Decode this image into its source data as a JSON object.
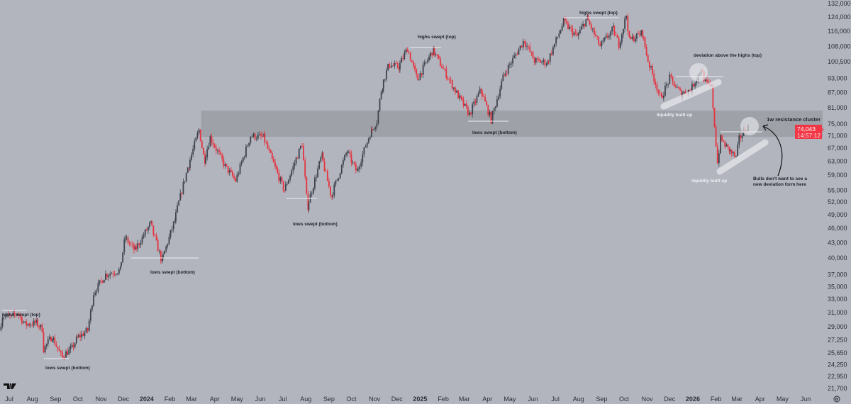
{
  "chart_data": {
    "type": "candlestick",
    "y_scale": "log",
    "ylim": [
      21700,
      132000
    ],
    "xlim": [
      "2023-06-20",
      "2026-06-15"
    ],
    "grid": false,
    "y_ticks": [
      "132,000",
      "124,000",
      "116,000",
      "108,000",
      "100,500",
      "93,000",
      "87,000",
      "81,000",
      "75,000",
      "71,000",
      "67,000",
      "63,000",
      "59,000",
      "55,000",
      "52,000",
      "49,000",
      "46,000",
      "43,000",
      "40,000",
      "37,000",
      "35,000",
      "33,000",
      "31,000",
      "29,000",
      "27,250",
      "25,650",
      "24,250",
      "22,950",
      "21,700"
    ],
    "x_ticks": [
      {
        "label": "Jul",
        "date": "2023-07-01"
      },
      {
        "label": "Aug",
        "date": "2023-08-01"
      },
      {
        "label": "Sep",
        "date": "2023-09-01"
      },
      {
        "label": "Oct",
        "date": "2023-10-01"
      },
      {
        "label": "Nov",
        "date": "2023-11-01"
      },
      {
        "label": "Dec",
        "date": "2023-12-01"
      },
      {
        "label": "2024",
        "date": "2024-01-01",
        "year": true
      },
      {
        "label": "Feb",
        "date": "2024-02-01"
      },
      {
        "label": "Mar",
        "date": "2024-03-01"
      },
      {
        "label": "Apr",
        "date": "2024-04-01"
      },
      {
        "label": "May",
        "date": "2024-05-01"
      },
      {
        "label": "Jun",
        "date": "2024-06-01"
      },
      {
        "label": "Jul",
        "date": "2024-07-01"
      },
      {
        "label": "Aug",
        "date": "2024-08-01"
      },
      {
        "label": "Sep",
        "date": "2024-09-01"
      },
      {
        "label": "Oct",
        "date": "2024-10-01"
      },
      {
        "label": "Nov",
        "date": "2024-11-01"
      },
      {
        "label": "Dec",
        "date": "2024-12-01"
      },
      {
        "label": "2025",
        "date": "2025-01-01",
        "year": true
      },
      {
        "label": "Feb",
        "date": "2025-02-01"
      },
      {
        "label": "Mar",
        "date": "2025-03-01"
      },
      {
        "label": "Apr",
        "date": "2025-04-01"
      },
      {
        "label": "May",
        "date": "2025-05-01"
      },
      {
        "label": "Jun",
        "date": "2025-06-01"
      },
      {
        "label": "Jul",
        "date": "2025-07-01"
      },
      {
        "label": "Aug",
        "date": "2025-08-01"
      },
      {
        "label": "Sep",
        "date": "2025-09-01"
      },
      {
        "label": "Oct",
        "date": "2025-10-01"
      },
      {
        "label": "Nov",
        "date": "2025-11-01"
      },
      {
        "label": "Dec",
        "date": "2025-12-01"
      },
      {
        "label": "2026",
        "date": "2026-01-01",
        "year": true
      },
      {
        "label": "Feb",
        "date": "2026-02-01"
      },
      {
        "label": "Mar",
        "date": "2026-03-01"
      },
      {
        "label": "Apr",
        "date": "2026-04-01"
      },
      {
        "label": "May",
        "date": "2026-05-01"
      },
      {
        "label": "Jun",
        "date": "2026-06-01"
      }
    ],
    "price_path": [
      [
        "2023-06-20",
        28500
      ],
      [
        "2023-06-24",
        30600
      ],
      [
        "2023-07-06",
        30300
      ],
      [
        "2023-07-14",
        31000
      ],
      [
        "2023-07-24",
        29300
      ],
      [
        "2023-08-08",
        29500
      ],
      [
        "2023-08-16",
        28700
      ],
      [
        "2023-08-18",
        26100
      ],
      [
        "2023-08-29",
        27700
      ],
      [
        "2023-09-11",
        25200
      ],
      [
        "2023-09-25",
        26200
      ],
      [
        "2023-10-02",
        27500
      ],
      [
        "2023-10-16",
        28500
      ],
      [
        "2023-10-24",
        34000
      ],
      [
        "2023-11-09",
        37000
      ],
      [
        "2023-11-28",
        37800
      ],
      [
        "2023-12-05",
        44000
      ],
      [
        "2023-12-18",
        41500
      ],
      [
        "2024-01-08",
        47000
      ],
      [
        "2024-01-23",
        39500
      ],
      [
        "2024-02-09",
        47500
      ],
      [
        "2024-02-15",
        52000
      ],
      [
        "2024-02-28",
        62000
      ],
      [
        "2024-03-13",
        73000
      ],
      [
        "2024-03-20",
        63500
      ],
      [
        "2024-03-28",
        70500
      ],
      [
        "2024-04-17",
        61500
      ],
      [
        "2024-05-01",
        57500
      ],
      [
        "2024-05-21",
        71000
      ],
      [
        "2024-06-07",
        70500
      ],
      [
        "2024-06-24",
        60500
      ],
      [
        "2024-07-05",
        55000
      ],
      [
        "2024-07-29",
        68500
      ],
      [
        "2024-08-05",
        51000
      ],
      [
        "2024-08-24",
        64500
      ],
      [
        "2024-09-06",
        53500
      ],
      [
        "2024-09-27",
        66000
      ],
      [
        "2024-10-10",
        60000
      ],
      [
        "2024-10-29",
        72500
      ],
      [
        "2024-11-06",
        76000
      ],
      [
        "2024-11-13",
        90000
      ],
      [
        "2024-11-22",
        99000
      ],
      [
        "2024-12-05",
        98000
      ],
      [
        "2024-12-17",
        107000
      ],
      [
        "2024-12-30",
        92500
      ],
      [
        "2025-01-20",
        106000
      ],
      [
        "2025-02-03",
        97000
      ],
      [
        "2025-02-26",
        84000
      ],
      [
        "2025-03-10",
        78500
      ],
      [
        "2025-03-25",
        88000
      ],
      [
        "2025-04-08",
        76500
      ],
      [
        "2025-04-25",
        94500
      ],
      [
        "2025-05-22",
        111000
      ],
      [
        "2025-06-05",
        101000
      ],
      [
        "2025-06-22",
        100000
      ],
      [
        "2025-07-14",
        121000
      ],
      [
        "2025-08-01",
        113000
      ],
      [
        "2025-08-14",
        123000
      ],
      [
        "2025-09-01",
        108000
      ],
      [
        "2025-09-18",
        117000
      ],
      [
        "2025-09-26",
        109000
      ],
      [
        "2025-10-06",
        125000
      ],
      [
        "2025-10-10",
        111000
      ],
      [
        "2025-10-27",
        115000
      ],
      [
        "2025-11-04",
        101000
      ],
      [
        "2025-11-21",
        84500
      ],
      [
        "2025-12-03",
        93000
      ],
      [
        "2025-12-18",
        86500
      ],
      [
        "2025-12-31",
        88000
      ],
      [
        "2026-01-14",
        97000
      ],
      [
        "2026-01-20",
        91000
      ],
      [
        "2026-01-28",
        89000
      ],
      [
        "2026-02-05",
        62500
      ],
      [
        "2026-02-09",
        70000
      ],
      [
        "2026-02-20",
        66500
      ],
      [
        "2026-03-02",
        64000
      ],
      [
        "2026-03-06",
        70000
      ],
      [
        "2026-03-17",
        74043
      ]
    ],
    "resistance_zone": {
      "label": "1w resistance cluster",
      "low": 70650,
      "high": 79900,
      "from": "2024-03-14"
    },
    "last_price": {
      "value": "74,043",
      "countdown": "14:57:12",
      "color": "#f23645"
    }
  },
  "annotations": {
    "highs_1": "highs swept (top)",
    "lows_1": "lows swept (bottom)",
    "lows_2": "lows swept (bottom)",
    "lows_3": "lows swept (bottom)",
    "highs_2": "highs swept (top)",
    "lows_4": "lows swept (bottom)",
    "highs_3": "highs swept (top)",
    "deviation": "deviation above the highs (top)",
    "liquidity_1": "liquidity built up",
    "liquidity_2": "liquidity built up",
    "resistance": "1w resistance cluster",
    "bulls_line1": "Bulls don't want to see a",
    "bulls_line2": "new deviation form here"
  },
  "colors": {
    "background": "#b2b5be",
    "up": "#3d424c",
    "down": "#e5323e",
    "zone": "#9a9da4",
    "price_label": "#f23645"
  },
  "logo": "TV",
  "icons": {
    "settings": "gear-icon"
  }
}
